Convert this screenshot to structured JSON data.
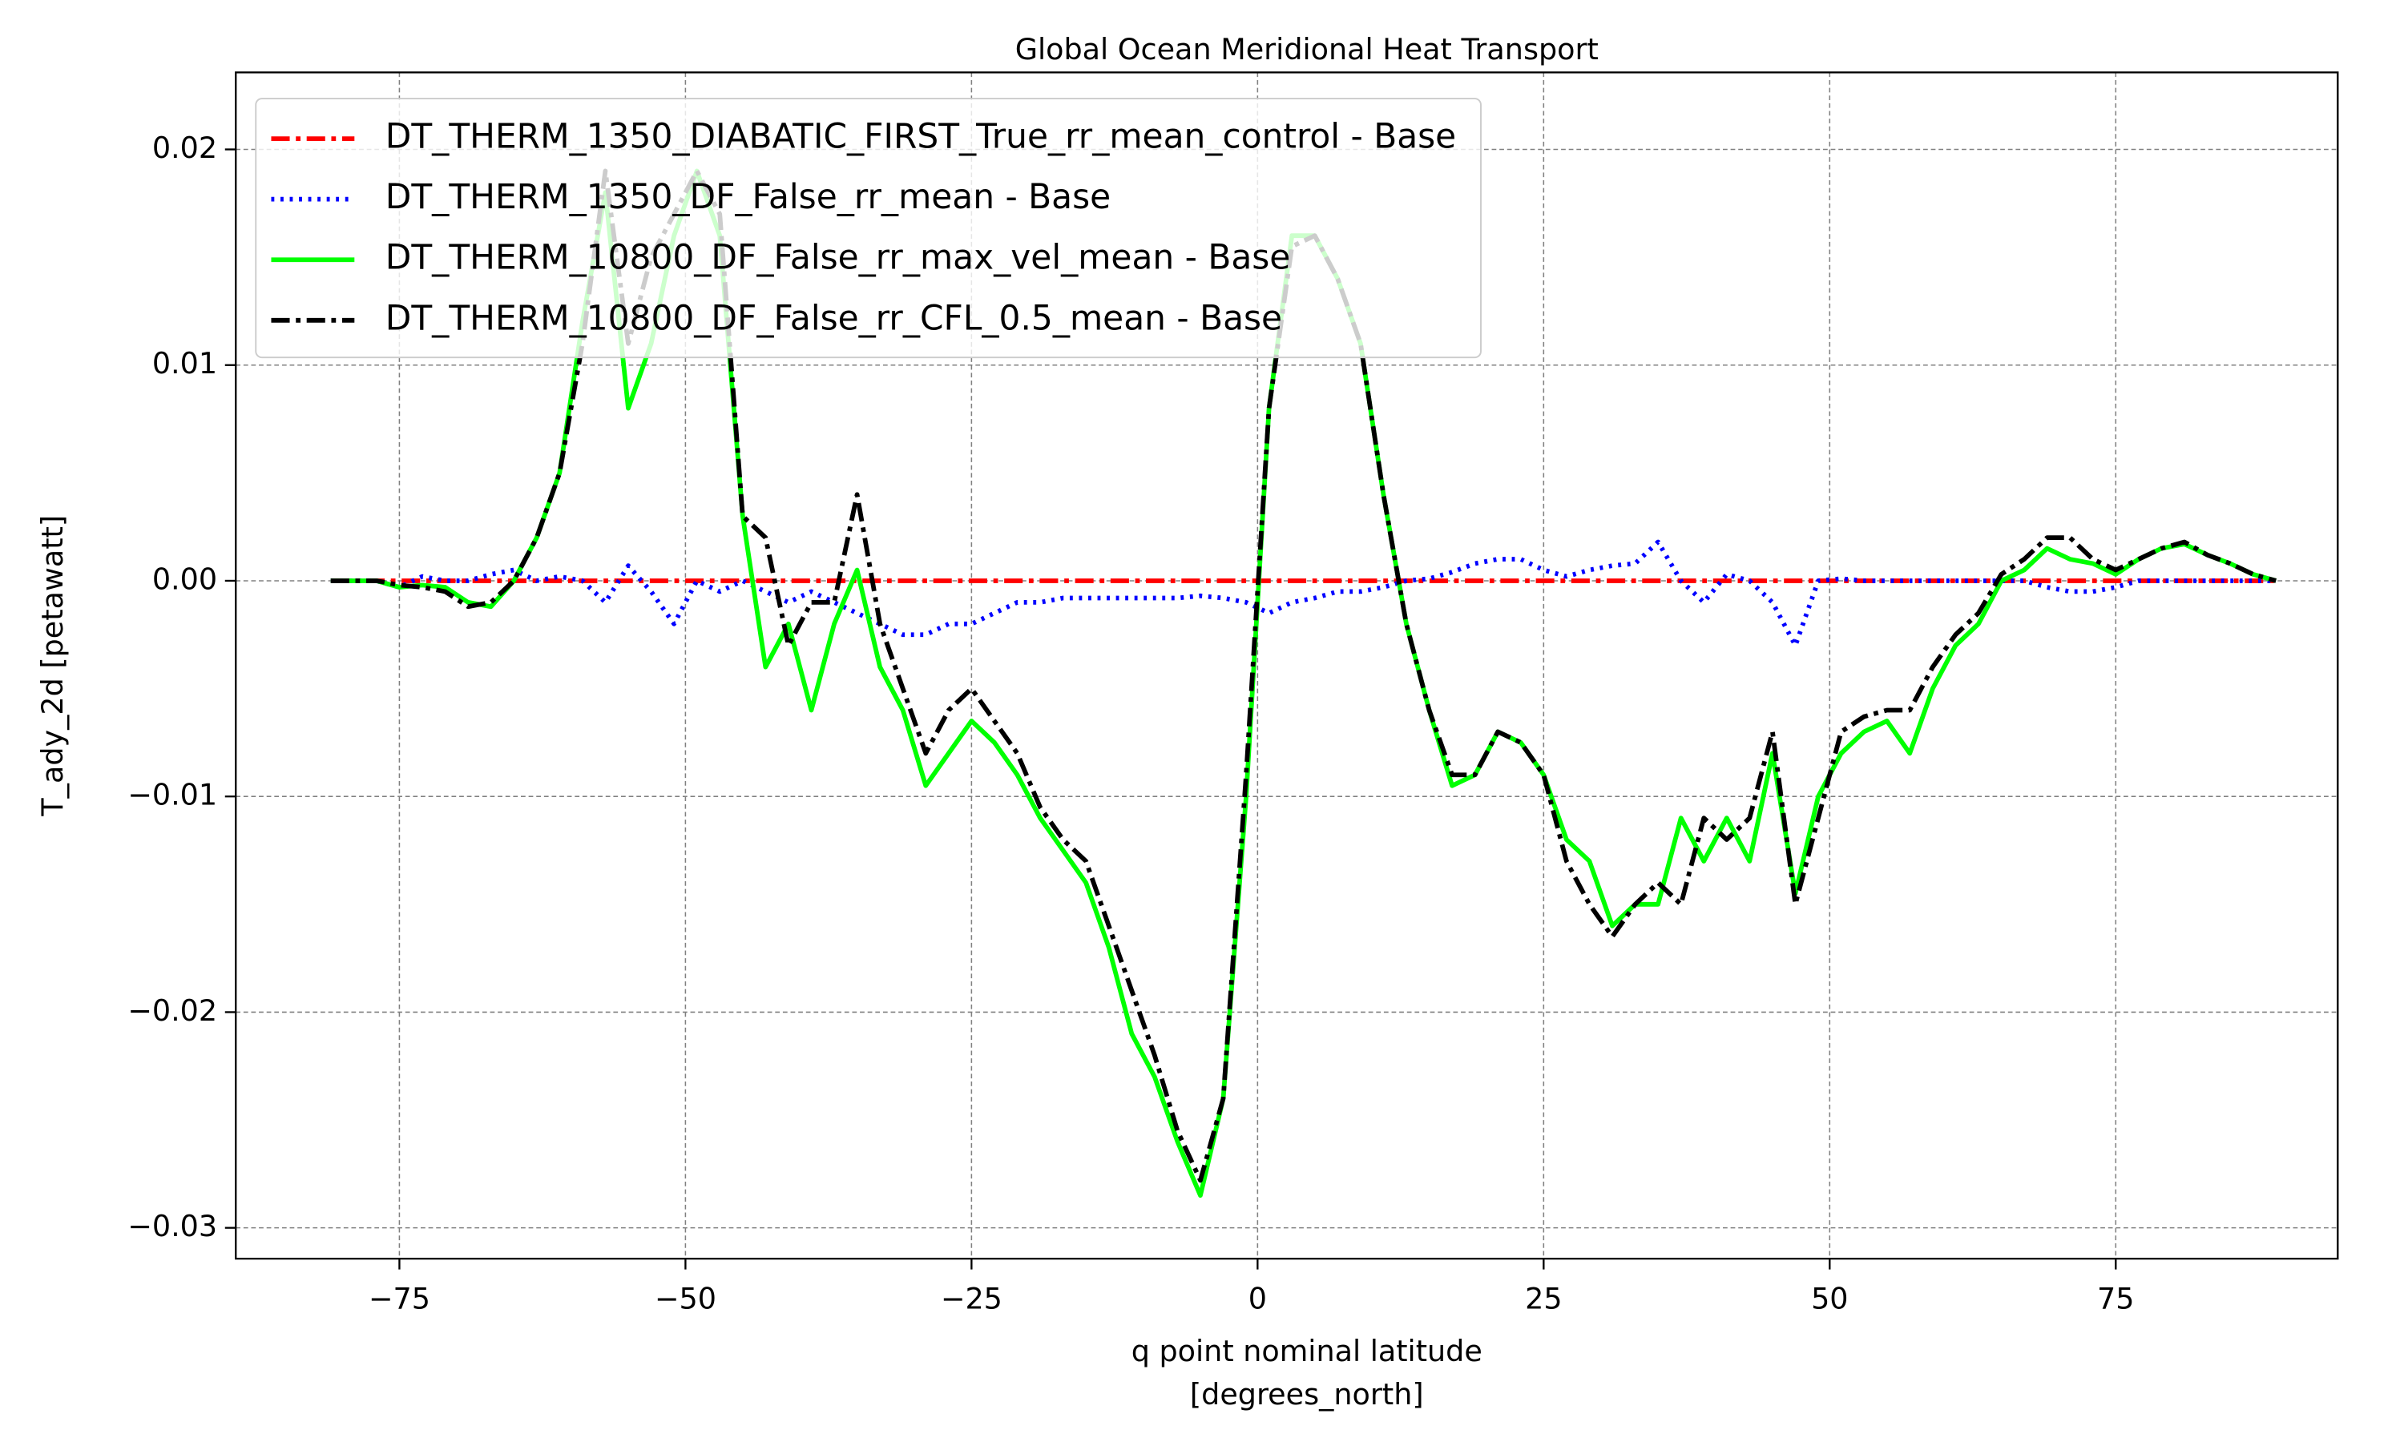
{
  "chart_data": {
    "type": "line",
    "title": "Global Ocean Meridional Heat Transport",
    "xlabel": [
      "q point nominal latitude",
      "[degrees_north]"
    ],
    "ylabel": "T_ady_2d [petawatt]",
    "xlim": [
      -89.3,
      94.4
    ],
    "ylim": [
      -0.03143,
      0.02357
    ],
    "xticks": [
      {
        "value": -75,
        "label": "−75"
      },
      {
        "value": -50,
        "label": "−50"
      },
      {
        "value": -25,
        "label": "−25"
      },
      0,
      25,
      50,
      75
    ],
    "yticks": [
      {
        "value": -0.03,
        "label": "−0.03"
      },
      {
        "value": -0.02,
        "label": "−0.02"
      },
      {
        "value": -0.01,
        "label": "−0.01"
      },
      {
        "value": 0,
        "label": "0.00"
      },
      0.01,
      0.02
    ],
    "grid": true,
    "legend": "upper left",
    "x": [
      -81,
      -79,
      -77,
      -75,
      -73,
      -71,
      -69,
      -67,
      -65,
      -63,
      -61,
      -59,
      -57,
      -55,
      -53,
      -51,
      -49,
      -47,
      -45,
      -43,
      -41,
      -39,
      -37,
      -35,
      -33,
      -31,
      -29,
      -27,
      -25,
      -23,
      -21,
      -19,
      -17,
      -15,
      -13,
      -11,
      -9,
      -7,
      -5,
      -3,
      -1,
      1,
      3,
      5,
      7,
      9,
      11,
      13,
      15,
      17,
      19,
      21,
      23,
      25,
      27,
      29,
      31,
      33,
      35,
      37,
      39,
      41,
      43,
      45,
      47,
      49,
      51,
      53,
      55,
      57,
      59,
      61,
      63,
      65,
      67,
      69,
      71,
      73,
      75,
      77,
      79,
      81,
      83,
      85,
      87,
      89
    ],
    "series": [
      {
        "name": "DT_THERM_1350_DIABATIC_FIRST_True_rr_mean_control - Base",
        "color": "#ff0000",
        "linestyle": "dashdot",
        "values": [
          0,
          0,
          0,
          0,
          0,
          0,
          0,
          0,
          0,
          0,
          0,
          0,
          0,
          0,
          0,
          0,
          0,
          0,
          0,
          0,
          0,
          0,
          0,
          0,
          0,
          0,
          0,
          0,
          0,
          0,
          0,
          0,
          0,
          0,
          0,
          0,
          0,
          0,
          0,
          0,
          0,
          0,
          0,
          0,
          0,
          0,
          0,
          0,
          0,
          0,
          0,
          0,
          0,
          0,
          0,
          0,
          0,
          0,
          0,
          0,
          0,
          0,
          0,
          0,
          0,
          0,
          0,
          0,
          0,
          0,
          0,
          0,
          0,
          0,
          0,
          0,
          0,
          0,
          0,
          0,
          0,
          0,
          0,
          0,
          0,
          0
        ]
      },
      {
        "name": "DT_THERM_1350_DF_False_rr_mean - Base",
        "color": "#0000ff",
        "linestyle": "dotted",
        "values": [
          0,
          0,
          0,
          -0.0003,
          0.0002,
          0,
          0,
          0.0003,
          0.0005,
          0,
          0.0002,
          0,
          -0.001,
          0.0007,
          -0.0005,
          -0.002,
          0,
          -0.0005,
          0,
          -0.0005,
          -0.001,
          -0.0005,
          -0.001,
          -0.0015,
          -0.002,
          -0.0025,
          -0.0025,
          -0.002,
          -0.002,
          -0.0015,
          -0.001,
          -0.001,
          -0.0008,
          -0.0008,
          -0.0008,
          -0.0008,
          -0.0008,
          -0.0008,
          -0.0007,
          -0.0008,
          -0.001,
          -0.0015,
          -0.001,
          -0.0008,
          -0.0005,
          -0.0005,
          -0.0003,
          0,
          0.0001,
          0.0004,
          0.0008,
          0.001,
          0.001,
          0.0005,
          0.0002,
          0.0005,
          0.0007,
          0.0008,
          0.0018,
          0,
          -0.001,
          0.0003,
          0,
          -0.001,
          -0.003,
          0,
          0.0001,
          0,
          0,
          0,
          0,
          0,
          0,
          0,
          0,
          -0.0003,
          -0.0005,
          -0.0005,
          -0.0003,
          0,
          0,
          0,
          0,
          0,
          0,
          0
        ]
      },
      {
        "name": "DT_THERM_10800_DF_False_rr_max_vel_mean - Base",
        "color": "#00ff00",
        "linestyle": "solid",
        "values": [
          0,
          0,
          0,
          -0.0003,
          -0.0002,
          -0.0003,
          -0.001,
          -0.0012,
          0,
          0.002,
          0.005,
          0.012,
          0.018,
          0.008,
          0.011,
          0.016,
          0.019,
          0.016,
          0.003,
          -0.004,
          -0.002,
          -0.006,
          -0.002,
          0.0005,
          -0.004,
          -0.006,
          -0.0095,
          -0.008,
          -0.0065,
          -0.0075,
          -0.009,
          -0.011,
          -0.0125,
          -0.014,
          -0.017,
          -0.021,
          -0.023,
          -0.026,
          -0.0285,
          -0.024,
          -0.01,
          0.008,
          0.016,
          0.016,
          0.014,
          0.011,
          0.004,
          -0.002,
          -0.006,
          -0.0095,
          -0.009,
          -0.007,
          -0.0075,
          -0.009,
          -0.012,
          -0.013,
          -0.016,
          -0.015,
          -0.015,
          -0.011,
          -0.013,
          -0.011,
          -0.013,
          -0.008,
          -0.0145,
          -0.01,
          -0.008,
          -0.007,
          -0.0065,
          -0.008,
          -0.005,
          -0.003,
          -0.002,
          0,
          0.0005,
          0.0015,
          0.001,
          0.0008,
          0.0003,
          0.001,
          0.0015,
          0.0017,
          0.0012,
          0.0008,
          0.0003,
          0
        ]
      },
      {
        "name": "DT_THERM_10800_DF_False_rr_CFL_0.5_mean - Base",
        "color": "#000000",
        "linestyle": "dashdot",
        "values": [
          0,
          0,
          0,
          -0.0002,
          -0.0003,
          -0.0005,
          -0.0012,
          -0.001,
          0,
          0.002,
          0.005,
          0.011,
          0.019,
          0.011,
          0.015,
          0.017,
          0.019,
          0.017,
          0.003,
          0.002,
          -0.003,
          -0.001,
          -0.001,
          0.004,
          -0.002,
          -0.005,
          -0.008,
          -0.006,
          -0.005,
          -0.0065,
          -0.008,
          -0.0105,
          -0.012,
          -0.013,
          -0.016,
          -0.019,
          -0.022,
          -0.0255,
          -0.0278,
          -0.024,
          -0.009,
          0.008,
          0.0155,
          0.016,
          0.014,
          0.011,
          0.004,
          -0.002,
          -0.006,
          -0.009,
          -0.009,
          -0.007,
          -0.0075,
          -0.009,
          -0.013,
          -0.015,
          -0.0165,
          -0.015,
          -0.014,
          -0.015,
          -0.011,
          -0.012,
          -0.011,
          -0.007,
          -0.015,
          -0.011,
          -0.007,
          -0.0063,
          -0.006,
          -0.006,
          -0.004,
          -0.0025,
          -0.0015,
          0.0003,
          0.001,
          0.002,
          0.002,
          0.001,
          0.0005,
          0.001,
          0.0015,
          0.0018,
          0.0012,
          0.0008,
          0.0003,
          0
        ]
      }
    ]
  }
}
